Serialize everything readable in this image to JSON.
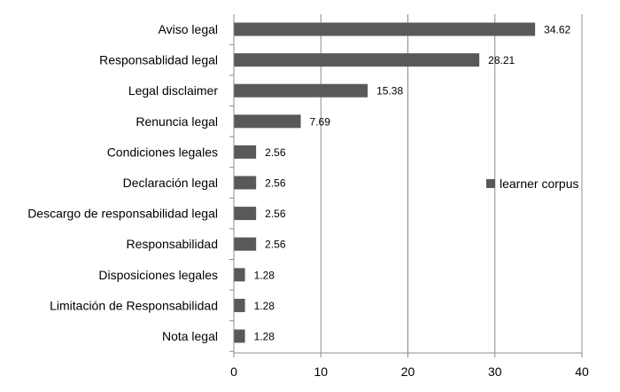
{
  "chart_data": {
    "type": "bar",
    "orientation": "horizontal",
    "categories": [
      "Aviso legal",
      "Responsablidad legal",
      "Legal disclaimer",
      "Renuncia legal",
      "Condiciones legales",
      "Declaración legal",
      "Descargo de responsabilidad legal",
      "Responsabilidad",
      "Disposiciones legales",
      "Limitación de Responsabilidad",
      "Nota legal"
    ],
    "series": [
      {
        "name": "learner corpus",
        "values": [
          34.62,
          28.21,
          15.38,
          7.69,
          2.56,
          2.56,
          2.56,
          2.56,
          1.28,
          1.28,
          1.28
        ],
        "color": "#595959"
      }
    ],
    "data_labels": [
      "34.62",
      "28.21",
      "15.38",
      "7.69",
      "2.56",
      "2.56",
      "2.56",
      "2.56",
      "1.28",
      "1.28",
      "1.28"
    ],
    "xlim": [
      0,
      40
    ],
    "xticks": [
      0,
      10,
      20,
      30,
      40
    ],
    "xtick_labels": [
      "0",
      "10",
      "20",
      "30",
      "40"
    ],
    "grid": "vertical",
    "legend_position": "right",
    "grid_color": "#8c8c8c",
    "axis_color": "#8c8c8c"
  }
}
